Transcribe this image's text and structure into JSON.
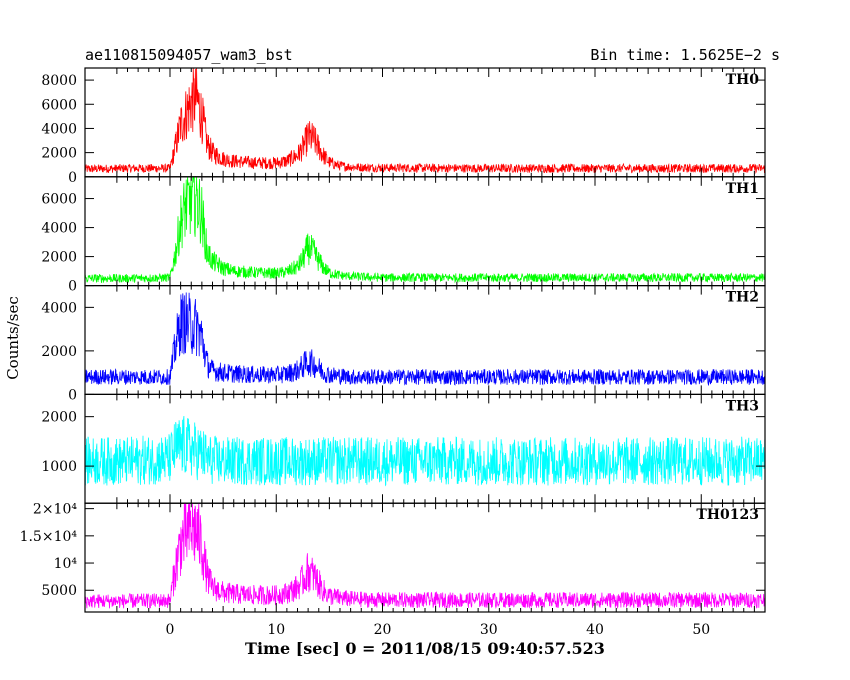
{
  "header": {
    "left_title": "ae110815094057_wam3_bst",
    "right_title": "Bin time: 1.5625E−2 s"
  },
  "chart_data": {
    "type": "line",
    "xlabel": "Time [sec] 0 = 2011/08/15 09:40:57.523",
    "ylabel": "Counts/sec",
    "xlim": [
      -8,
      56
    ],
    "x_ticks": [
      0,
      10,
      20,
      30,
      40,
      50
    ],
    "panels": [
      {
        "name": "TH0",
        "color": "#ff0000",
        "ylim": [
          0,
          9000
        ],
        "y_ticks": [
          0,
          2000,
          4000,
          6000,
          8000
        ],
        "y_tick_labels": [
          "0",
          "2000",
          "4000",
          "6000",
          "8000"
        ],
        "x": [
          -8,
          -4,
          0,
          0.5,
          1,
          1.5,
          2,
          2.5,
          3,
          3.5,
          4,
          5,
          6,
          8,
          10,
          11,
          12,
          12.5,
          13,
          13.5,
          14,
          14.5,
          15,
          16,
          17,
          18,
          20,
          25,
          30,
          35,
          40,
          45,
          50,
          56
        ],
        "y": [
          650,
          700,
          700,
          2500,
          4300,
          5200,
          6200,
          6500,
          5000,
          2700,
          2000,
          1500,
          1300,
          1150,
          1150,
          1300,
          1800,
          2400,
          3300,
          3100,
          2400,
          1700,
          1200,
          900,
          820,
          780,
          750,
          720,
          700,
          700,
          700,
          700,
          700,
          700
        ]
      },
      {
        "name": "TH1",
        "color": "#00ff00",
        "ylim": [
          0,
          7500
        ],
        "y_ticks": [
          0,
          2000,
          4000,
          6000
        ],
        "y_tick_labels": [
          "0",
          "2000",
          "4000",
          "6000"
        ],
        "x": [
          -8,
          -4,
          0,
          0.5,
          1,
          1.5,
          2,
          2.5,
          3,
          3.5,
          4,
          5,
          6,
          8,
          10,
          11,
          12,
          12.5,
          13,
          13.5,
          14,
          14.5,
          15,
          16,
          17,
          18,
          20,
          25,
          30,
          35,
          40,
          45,
          50,
          56
        ],
        "y": [
          500,
          500,
          550,
          2200,
          4400,
          5500,
          6000,
          6100,
          4800,
          2300,
          1700,
          1200,
          1000,
          900,
          850,
          950,
          1300,
          1800,
          2600,
          2300,
          1700,
          1200,
          900,
          700,
          650,
          600,
          550,
          550,
          550,
          550,
          550,
          550,
          550,
          550
        ]
      },
      {
        "name": "TH2",
        "color": "#0000ff",
        "ylim": [
          0,
          5000
        ],
        "y_ticks": [
          0,
          2000,
          4000
        ],
        "y_tick_labels": [
          "0",
          "2000",
          "4000"
        ],
        "x": [
          -8,
          -4,
          0,
          0.5,
          1,
          1.5,
          2,
          2.5,
          3,
          3.5,
          4,
          5,
          6,
          8,
          10,
          11,
          12,
          12.5,
          13,
          13.5,
          14,
          14.5,
          15,
          16,
          17,
          18,
          20,
          25,
          30,
          35,
          40,
          45,
          50,
          56
        ],
        "y": [
          800,
          800,
          800,
          2200,
          3300,
          3300,
          3200,
          3100,
          2600,
          1400,
          1100,
          1000,
          950,
          900,
          900,
          950,
          1100,
          1300,
          1500,
          1400,
          1200,
          1000,
          900,
          850,
          800,
          800,
          800,
          800,
          800,
          800,
          800,
          800,
          800,
          800
        ]
      },
      {
        "name": "TH3",
        "color": "#00ffff",
        "ylim": [
          250,
          2450
        ],
        "y_ticks": [
          1000,
          2000
        ],
        "y_tick_labels": [
          "1000",
          "2000"
        ],
        "x": [
          -8,
          -4,
          0,
          0.5,
          1,
          1.5,
          2,
          2.5,
          3,
          3.5,
          4,
          5,
          6,
          8,
          10,
          11,
          12,
          12.5,
          13,
          13.5,
          14,
          14.5,
          15,
          16,
          17,
          18,
          20,
          25,
          30,
          35,
          40,
          45,
          50,
          56
        ],
        "y": [
          1100,
          1100,
          1150,
          1350,
          1400,
          1400,
          1350,
          1300,
          1250,
          1150,
          1120,
          1100,
          1100,
          1100,
          1100,
          1100,
          1100,
          1100,
          1100,
          1100,
          1100,
          1100,
          1100,
          1100,
          1100,
          1100,
          1100,
          1100,
          1100,
          1100,
          1100,
          1100,
          1100,
          1100
        ]
      },
      {
        "name": "TH0123",
        "color": "#ff00ff",
        "ylim": [
          1000,
          21000
        ],
        "y_ticks": [
          5000,
          10000,
          15000,
          20000
        ],
        "y_tick_labels": [
          "5000",
          "10⁴",
          "1.5×10⁴",
          "2×10⁴"
        ],
        "x": [
          -8,
          -4,
          0,
          0.5,
          1,
          1.5,
          2,
          2.5,
          3,
          3.5,
          4,
          5,
          6,
          8,
          10,
          11,
          12,
          12.5,
          13,
          13.5,
          14,
          14.5,
          15,
          16,
          17,
          18,
          20,
          25,
          30,
          35,
          40,
          45,
          50,
          56
        ],
        "y": [
          3000,
          3000,
          3100,
          9000,
          13500,
          15500,
          16500,
          16000,
          13000,
          7500,
          5500,
          4600,
          4300,
          4100,
          4100,
          4500,
          5500,
          6800,
          8500,
          7700,
          6200,
          4800,
          4000,
          3600,
          3400,
          3300,
          3200,
          3200,
          3200,
          3200,
          3200,
          3200,
          3200,
          3200
        ]
      }
    ]
  }
}
